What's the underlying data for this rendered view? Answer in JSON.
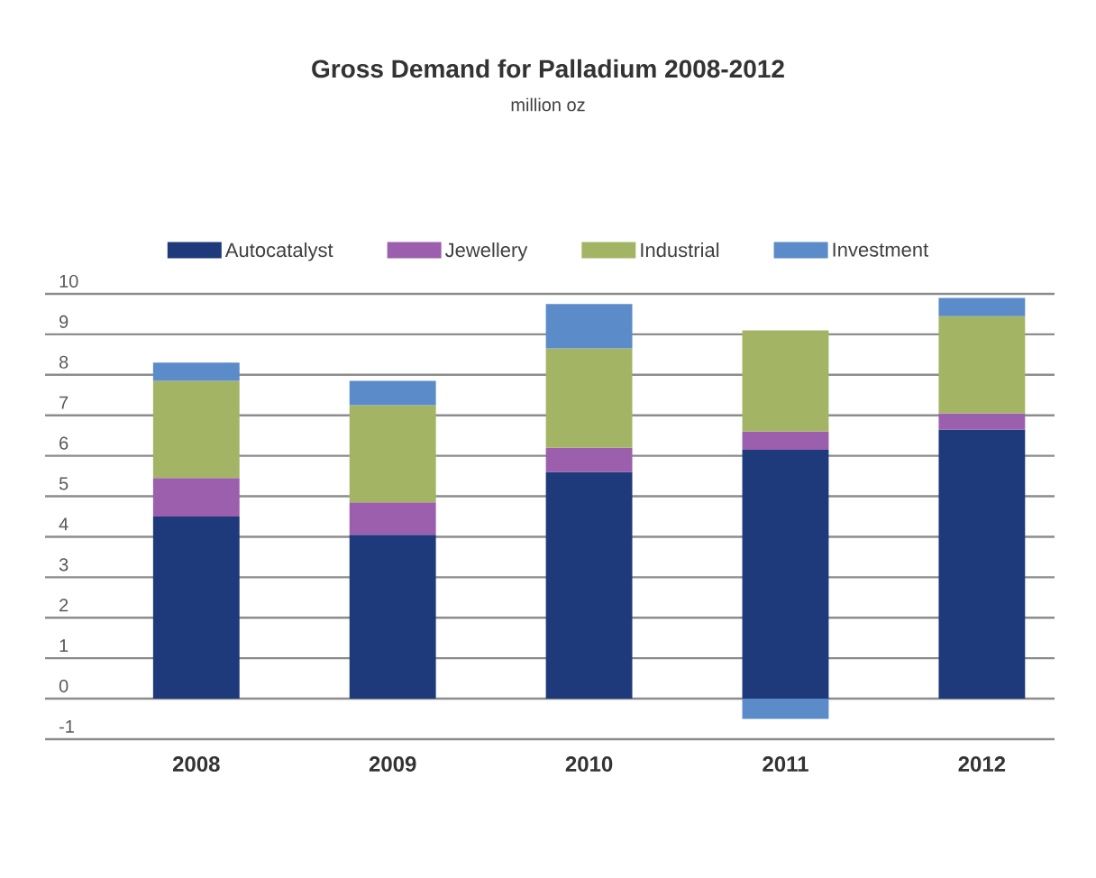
{
  "chart_data": {
    "type": "bar",
    "title": "Gross Demand for Palladium 2008-2012",
    "subtitle": "million oz",
    "categories": [
      "2008",
      "2009",
      "2010",
      "2011",
      "2012"
    ],
    "stacked": true,
    "series": [
      {
        "name": "Autocatalyst",
        "color": "#1f3a7a",
        "values": [
          4.5,
          4.05,
          5.6,
          6.15,
          6.65
        ]
      },
      {
        "name": "Jewellery",
        "color": "#9b5fad",
        "values": [
          0.95,
          0.8,
          0.6,
          0.45,
          0.4
        ]
      },
      {
        "name": "Industrial",
        "color": "#a3b565",
        "values": [
          2.4,
          2.4,
          2.45,
          2.5,
          2.4
        ]
      },
      {
        "name": "Investment",
        "color": "#5b8bc9",
        "values": [
          0.45,
          0.6,
          1.1,
          -0.5,
          0.45
        ]
      }
    ],
    "ylim": [
      -1,
      10
    ],
    "yticks": [
      -1,
      0,
      1,
      2,
      3,
      4,
      5,
      6,
      7,
      8,
      9,
      10
    ],
    "grid": "y",
    "legend": "top"
  }
}
